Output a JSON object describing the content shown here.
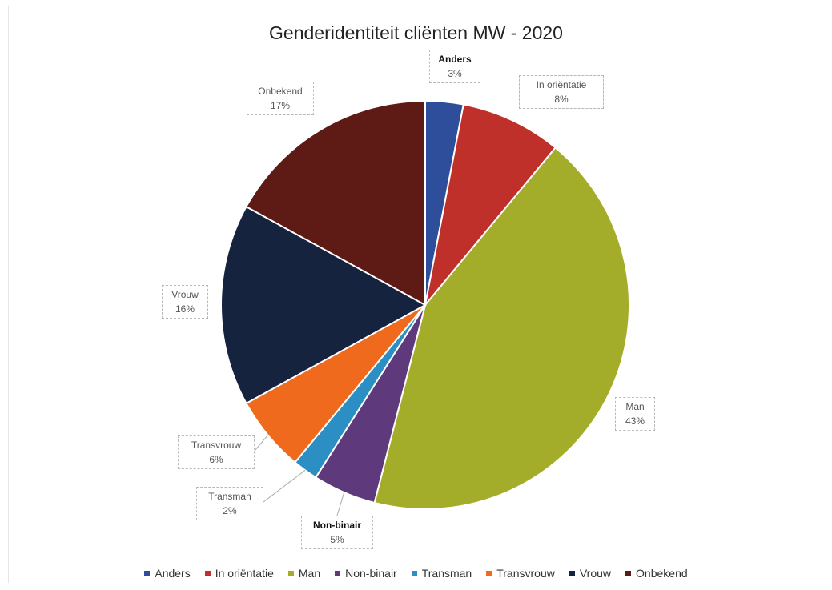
{
  "chart_data": {
    "type": "pie",
    "title": "Genderidentiteit cliënten MW - 2020",
    "categories": [
      "Anders",
      "In oriëntatie",
      "Man",
      "Non-binair",
      "Transman",
      "Transvrouw",
      "Vrouw",
      "Onbekend"
    ],
    "values": [
      3,
      8,
      43,
      5,
      2,
      6,
      16,
      17
    ],
    "value_labels": [
      "3%",
      "8%",
      "43%",
      "5%",
      "2%",
      "6%",
      "16%",
      "17%"
    ],
    "colors": [
      "#2e4d9b",
      "#c0302a",
      "#a3ad2a",
      "#5e3a7c",
      "#2b8fc4",
      "#f06a1e",
      "#16233f",
      "#5e1a14"
    ],
    "legend_position": "bottom"
  }
}
